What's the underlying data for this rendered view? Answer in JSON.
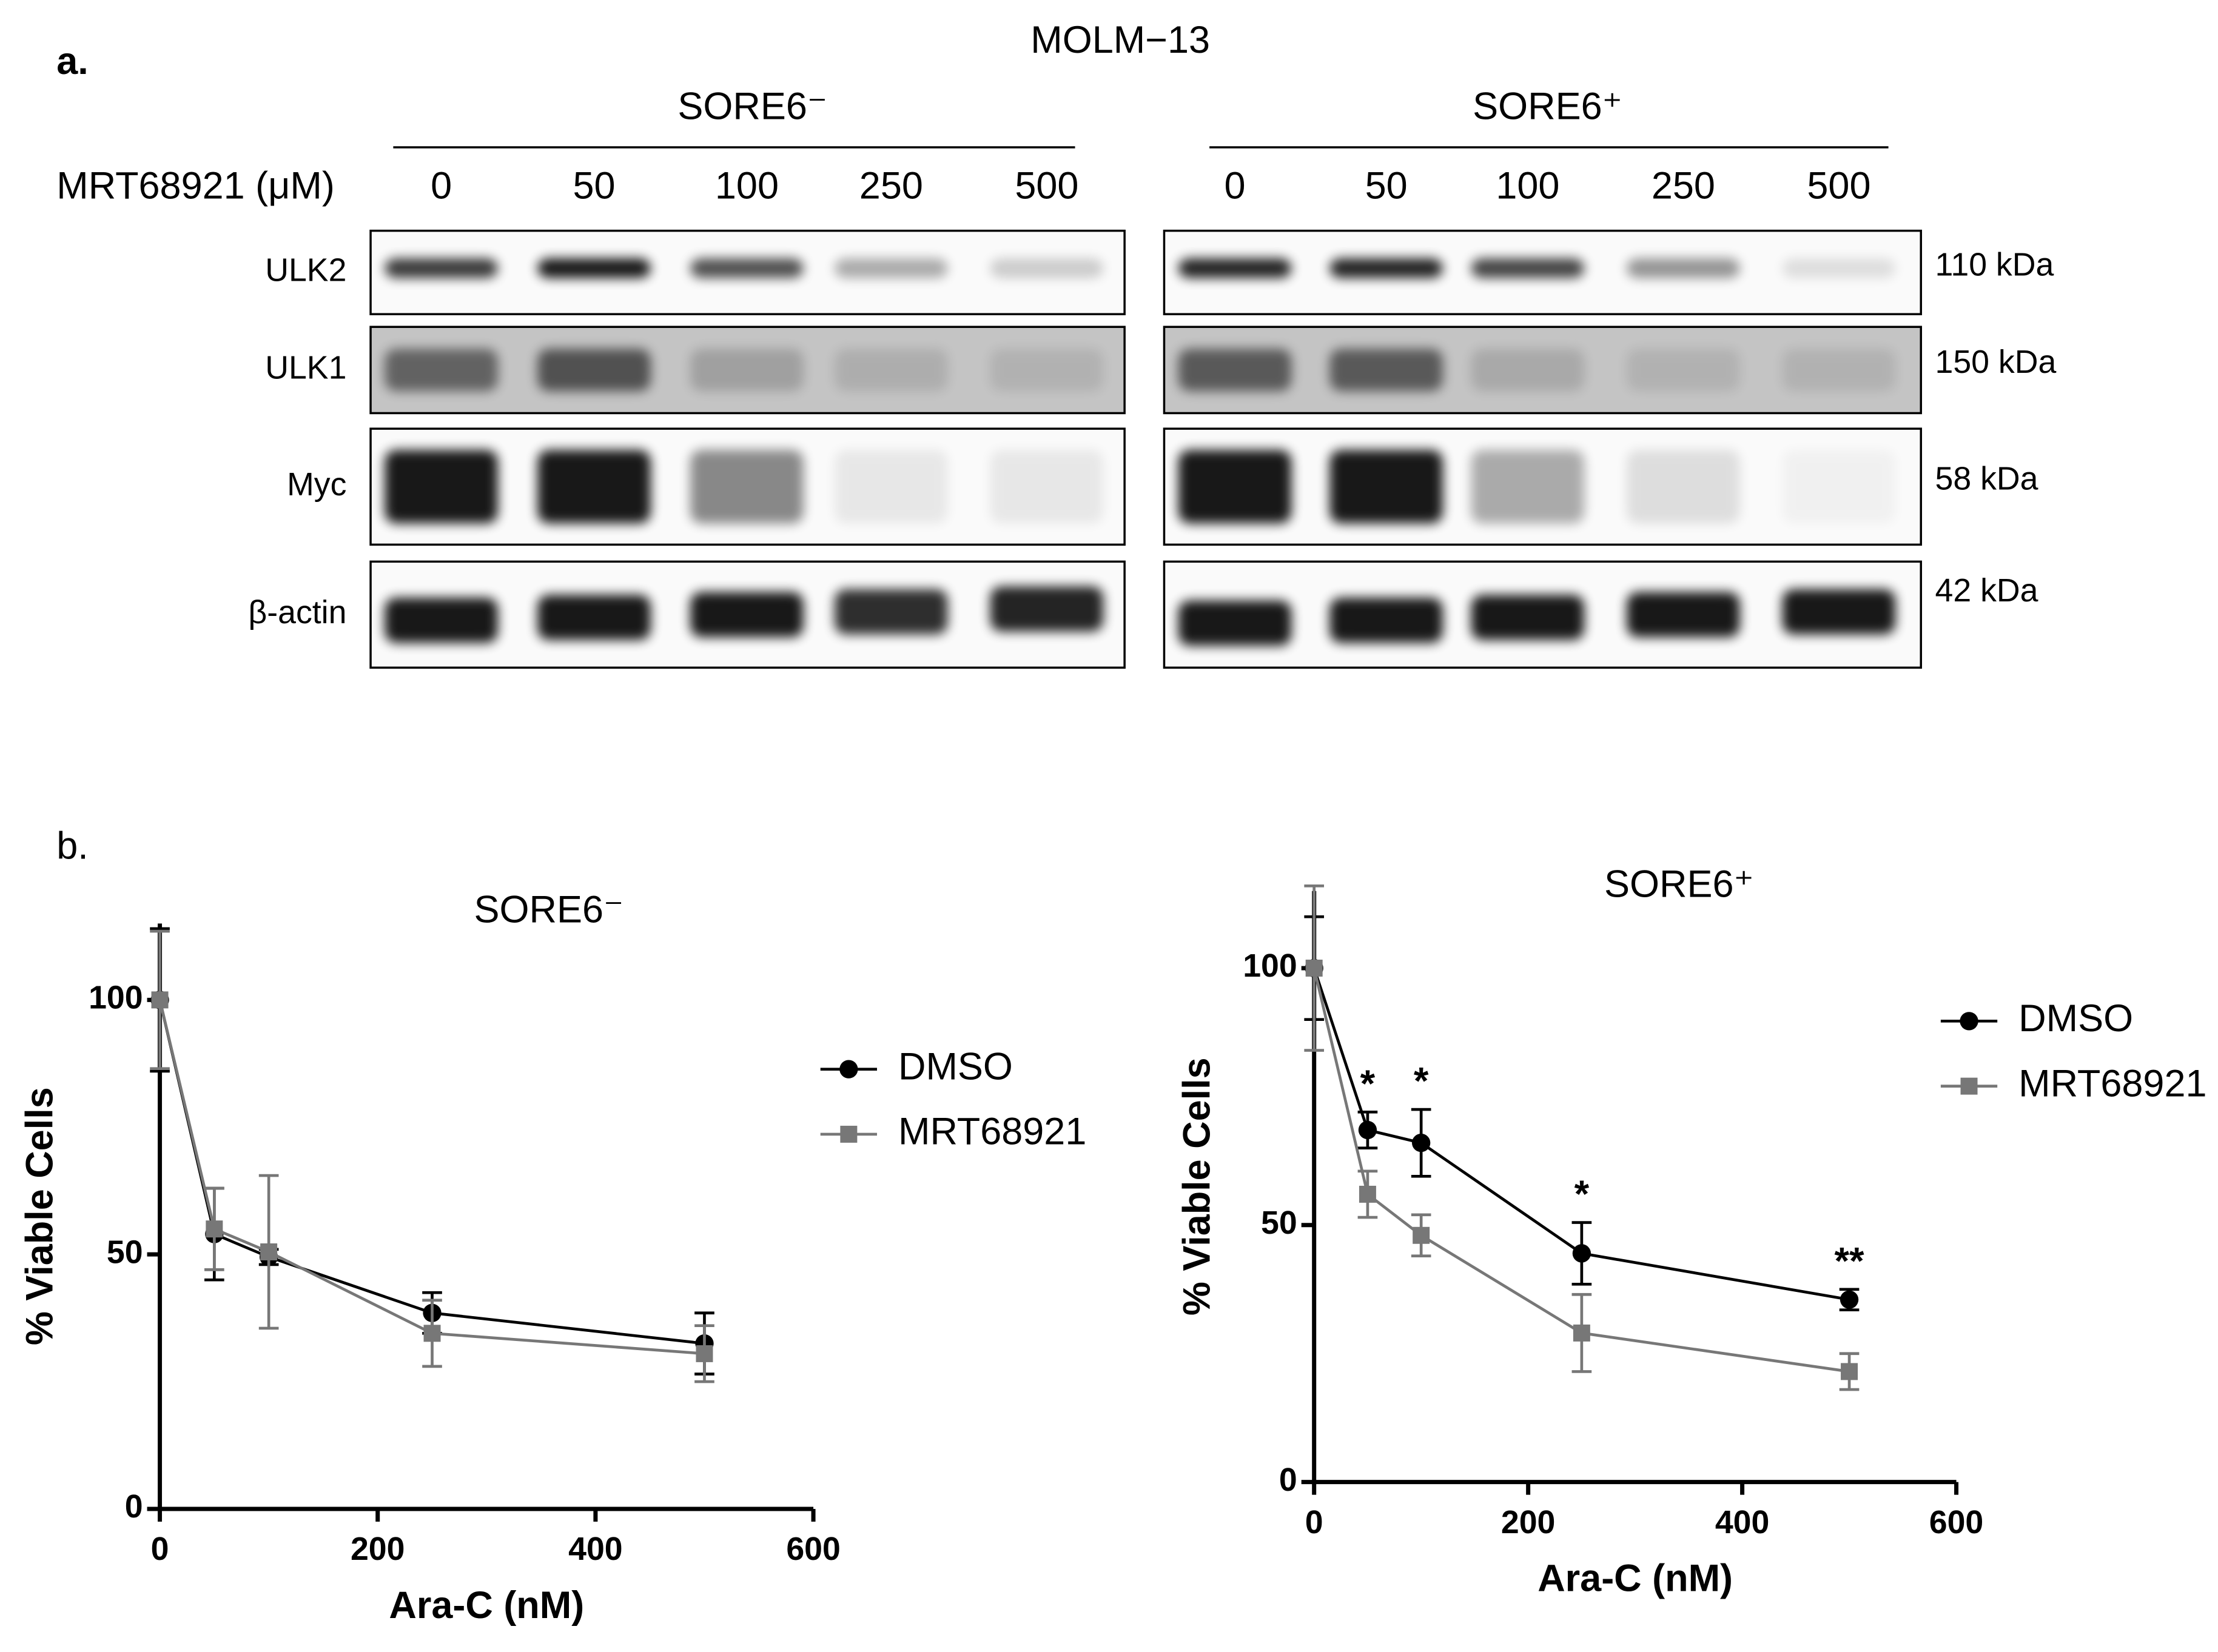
{
  "panel_a": {
    "label": "a.",
    "title": "MOLM−13",
    "dose_label": "MRT68921 (μM)",
    "groups": [
      {
        "name": "SORE6⁻",
        "doses": [
          "0",
          "50",
          "100",
          "250",
          "500"
        ]
      },
      {
        "name": "SORE6⁺",
        "doses": [
          "0",
          "50",
          "100",
          "250",
          "500"
        ]
      }
    ],
    "rows": [
      {
        "label": "ULK2",
        "size": "110 kDa"
      },
      {
        "label": "ULK1",
        "size": "150 kDa"
      },
      {
        "label": "Myc",
        "size": "58 kDa"
      },
      {
        "label": "β-actin",
        "size": "42 kDa"
      }
    ]
  },
  "panel_b_label": "b.",
  "chart_data": [
    {
      "type": "line",
      "title": "SORE6⁻",
      "xlabel": "Ara-C (nM)",
      "ylabel": "% Viable Cells",
      "x": [
        0,
        50,
        100,
        250,
        500
      ],
      "xlim": [
        0,
        600
      ],
      "xticks": [
        0,
        200,
        400,
        600
      ],
      "ylim": [
        0,
        115
      ],
      "yticks": [
        0,
        50,
        100
      ],
      "legend": "right",
      "series": [
        {
          "name": "DMSO",
          "color": "#000000",
          "marker": "circle",
          "values": [
            100,
            54,
            49.5,
            38.5,
            32.5
          ],
          "errors": [
            14,
            9,
            1.5,
            4,
            6
          ]
        },
        {
          "name": "MRT68921",
          "color": "#777777",
          "marker": "square",
          "values": [
            100,
            55,
            50.5,
            34.5,
            30.5
          ],
          "errors": [
            13.5,
            8,
            15,
            6.5,
            5.5
          ]
        }
      ]
    },
    {
      "type": "line",
      "title": "SORE6⁺",
      "xlabel": "Ara-C (nM)",
      "ylabel": "% Viable Cells",
      "x": [
        0,
        50,
        100,
        250,
        500
      ],
      "xlim": [
        0,
        600
      ],
      "xticks": [
        0,
        200,
        400,
        600
      ],
      "ylim": [
        0,
        115
      ],
      "yticks": [
        0,
        50,
        100
      ],
      "legend": "right",
      "series": [
        {
          "name": "DMSO",
          "color": "#000000",
          "marker": "circle",
          "values": [
            100,
            68.5,
            66,
            44.5,
            35.5
          ],
          "errors": [
            10,
            3.5,
            6.5,
            6,
            2
          ]
        },
        {
          "name": "MRT68921",
          "color": "#777777",
          "marker": "square",
          "values": [
            100,
            56,
            48,
            29,
            21.5
          ],
          "errors": [
            16,
            4.5,
            4,
            7.5,
            3.5
          ]
        }
      ],
      "annotations": [
        {
          "x": 50,
          "text": "*"
        },
        {
          "x": 100,
          "text": "*"
        },
        {
          "x": 250,
          "text": "*"
        },
        {
          "x": 500,
          "text": "**"
        }
      ]
    }
  ]
}
